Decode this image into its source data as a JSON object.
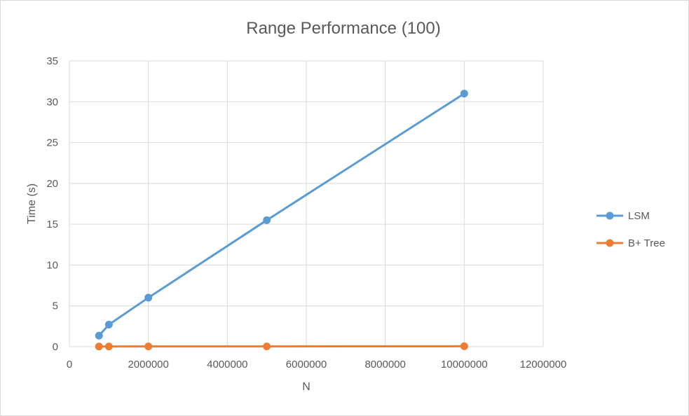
{
  "chart_data": {
    "type": "scatter",
    "title": "Range Performance  (100)",
    "xlabel": "N",
    "ylabel": "Time (s)",
    "xlim": [
      0,
      12000000
    ],
    "ylim": [
      0,
      35
    ],
    "xticks": [
      "0",
      "2000000",
      "4000000",
      "6000000",
      "8000000",
      "10000000",
      "12000000"
    ],
    "yticks": [
      "0",
      "5",
      "10",
      "15",
      "20",
      "25",
      "30",
      "35"
    ],
    "grid": true,
    "legend_position": "right",
    "series": [
      {
        "name": "LSM",
        "color": "#5b9bd5",
        "x": [
          750000,
          1000000,
          2000000,
          5000000,
          10000000
        ],
        "y": [
          1.35,
          2.7,
          6.0,
          15.5,
          31.0
        ]
      },
      {
        "name": "B+ Tree",
        "color": "#ed7d31",
        "x": [
          750000,
          1000000,
          2000000,
          5000000,
          10000000
        ],
        "y": [
          0.02,
          0.02,
          0.03,
          0.03,
          0.05
        ]
      }
    ]
  }
}
